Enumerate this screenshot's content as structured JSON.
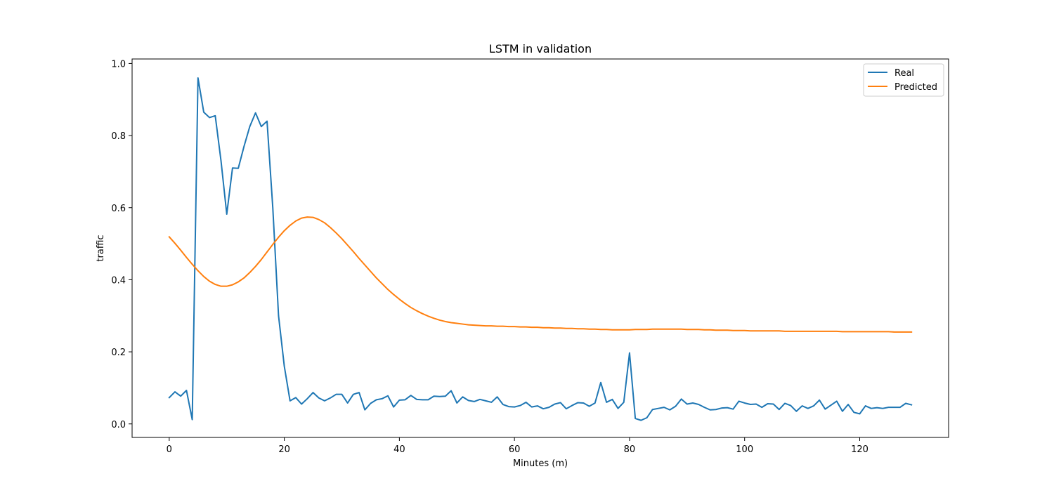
{
  "chart_data": {
    "type": "line",
    "title": "LSTM in validation",
    "xlabel": "Minutes (m)",
    "ylabel": "traffic",
    "xlim": [
      -6.45,
      135.45
    ],
    "ylim": [
      -0.0375,
      1.0125
    ],
    "xticks": [
      0,
      20,
      40,
      60,
      80,
      100,
      120
    ],
    "yticks": [
      0.0,
      0.2,
      0.4,
      0.6,
      0.8,
      1.0
    ],
    "xtick_labels": [
      "0",
      "20",
      "40",
      "60",
      "80",
      "100",
      "120"
    ],
    "ytick_labels": [
      "0.0",
      "0.2",
      "0.4",
      "0.6",
      "0.8",
      "1.0"
    ],
    "grid": false,
    "legend": "top-right",
    "series": [
      {
        "name": "Real",
        "color": "#1f77b4",
        "x": [
          0,
          1,
          2,
          3,
          4,
          5,
          6,
          7,
          8,
          9,
          10,
          11,
          12,
          13,
          14,
          15,
          16,
          17,
          18,
          19,
          20,
          21,
          22,
          23,
          24,
          25,
          26,
          27,
          28,
          29,
          30,
          31,
          32,
          33,
          34,
          35,
          36,
          37,
          38,
          39,
          40,
          41,
          42,
          43,
          44,
          45,
          46,
          47,
          48,
          49,
          50,
          51,
          52,
          53,
          54,
          55,
          56,
          57,
          58,
          59,
          60,
          61,
          62,
          63,
          64,
          65,
          66,
          67,
          68,
          69,
          70,
          71,
          72,
          73,
          74,
          75,
          76,
          77,
          78,
          79,
          80,
          81,
          82,
          83,
          84,
          85,
          86,
          87,
          88,
          89,
          90,
          91,
          92,
          93,
          94,
          95,
          96,
          97,
          98,
          99,
          100,
          101,
          102,
          103,
          104,
          105,
          106,
          107,
          108,
          109,
          110,
          111,
          112,
          113,
          114,
          115,
          116,
          117,
          118,
          119,
          120,
          121,
          122,
          123,
          124,
          125,
          126,
          127,
          128,
          129
        ],
        "values": [
          0.073,
          0.089,
          0.077,
          0.093,
          0.012,
          0.96,
          0.865,
          0.85,
          0.855,
          0.73,
          0.582,
          0.71,
          0.709,
          0.77,
          0.825,
          0.863,
          0.825,
          0.84,
          0.6,
          0.3,
          0.16,
          0.064,
          0.073,
          0.055,
          0.07,
          0.087,
          0.072,
          0.064,
          0.072,
          0.082,
          0.082,
          0.058,
          0.082,
          0.087,
          0.039,
          0.057,
          0.067,
          0.07,
          0.078,
          0.047,
          0.066,
          0.067,
          0.079,
          0.068,
          0.067,
          0.067,
          0.077,
          0.076,
          0.077,
          0.092,
          0.058,
          0.075,
          0.065,
          0.062,
          0.068,
          0.064,
          0.06,
          0.075,
          0.054,
          0.048,
          0.047,
          0.051,
          0.06,
          0.047,
          0.05,
          0.042,
          0.046,
          0.055,
          0.059,
          0.042,
          0.051,
          0.059,
          0.058,
          0.049,
          0.058,
          0.115,
          0.06,
          0.068,
          0.043,
          0.06,
          0.197,
          0.015,
          0.01,
          0.017,
          0.04,
          0.043,
          0.046,
          0.039,
          0.049,
          0.069,
          0.055,
          0.058,
          0.054,
          0.046,
          0.039,
          0.04,
          0.044,
          0.045,
          0.041,
          0.063,
          0.058,
          0.054,
          0.055,
          0.046,
          0.056,
          0.055,
          0.04,
          0.057,
          0.051,
          0.035,
          0.05,
          0.043,
          0.05,
          0.066,
          0.041,
          0.052,
          0.063,
          0.035,
          0.054,
          0.032,
          0.028,
          0.05,
          0.043,
          0.045,
          0.043,
          0.046,
          0.046,
          0.046,
          0.057,
          0.053
        ]
      },
      {
        "name": "Predicted",
        "color": "#ff7f0e",
        "x": [
          0,
          1,
          2,
          3,
          4,
          5,
          6,
          7,
          8,
          9,
          10,
          11,
          12,
          13,
          14,
          15,
          16,
          17,
          18,
          19,
          20,
          21,
          22,
          23,
          24,
          25,
          26,
          27,
          28,
          29,
          30,
          31,
          32,
          33,
          34,
          35,
          36,
          37,
          38,
          39,
          40,
          41,
          42,
          43,
          44,
          45,
          46,
          47,
          48,
          49,
          50,
          51,
          52,
          53,
          54,
          55,
          56,
          57,
          58,
          59,
          60,
          61,
          62,
          63,
          64,
          65,
          66,
          67,
          68,
          69,
          70,
          71,
          72,
          73,
          74,
          75,
          76,
          77,
          78,
          79,
          80,
          81,
          82,
          83,
          84,
          85,
          86,
          87,
          88,
          89,
          90,
          91,
          92,
          93,
          94,
          95,
          96,
          97,
          98,
          99,
          100,
          101,
          102,
          103,
          104,
          105,
          106,
          107,
          108,
          109,
          110,
          111,
          112,
          113,
          114,
          115,
          116,
          117,
          118,
          119,
          120,
          121,
          122,
          123,
          124,
          125,
          126,
          127,
          128,
          129
        ],
        "values": [
          0.519,
          0.501,
          0.482,
          0.462,
          0.443,
          0.425,
          0.409,
          0.396,
          0.387,
          0.382,
          0.382,
          0.386,
          0.394,
          0.405,
          0.42,
          0.437,
          0.456,
          0.477,
          0.498,
          0.518,
          0.536,
          0.551,
          0.563,
          0.571,
          0.574,
          0.573,
          0.567,
          0.558,
          0.545,
          0.53,
          0.514,
          0.496,
          0.478,
          0.459,
          0.441,
          0.423,
          0.405,
          0.389,
          0.373,
          0.359,
          0.346,
          0.334,
          0.323,
          0.314,
          0.306,
          0.299,
          0.293,
          0.288,
          0.284,
          0.281,
          0.279,
          0.277,
          0.275,
          0.274,
          0.273,
          0.272,
          0.272,
          0.271,
          0.271,
          0.27,
          0.27,
          0.269,
          0.269,
          0.268,
          0.268,
          0.267,
          0.267,
          0.266,
          0.266,
          0.265,
          0.265,
          0.264,
          0.264,
          0.263,
          0.263,
          0.262,
          0.262,
          0.261,
          0.261,
          0.261,
          0.261,
          0.262,
          0.262,
          0.262,
          0.263,
          0.263,
          0.263,
          0.263,
          0.263,
          0.263,
          0.262,
          0.262,
          0.262,
          0.261,
          0.261,
          0.26,
          0.26,
          0.26,
          0.259,
          0.259,
          0.259,
          0.258,
          0.258,
          0.258,
          0.258,
          0.258,
          0.258,
          0.257,
          0.257,
          0.257,
          0.257,
          0.257,
          0.257,
          0.257,
          0.257,
          0.257,
          0.257,
          0.256,
          0.256,
          0.256,
          0.256,
          0.256,
          0.256,
          0.256,
          0.256,
          0.256,
          0.255,
          0.255,
          0.255,
          0.255
        ]
      }
    ]
  }
}
